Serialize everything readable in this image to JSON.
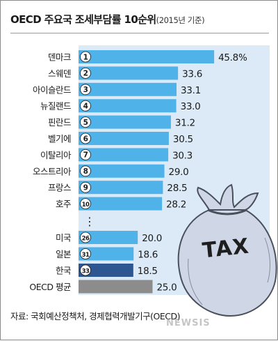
{
  "title": "OECD 주요국 조세부담률 10순위",
  "subtitle": "(2015년 기준)",
  "source": "자료: 국회예산정책처, 경제협력개발기구(OECD)",
  "watermark": "NEWSIS",
  "bag_label": "TAX",
  "ellipsis": "⋮",
  "colors": {
    "bar": "#4fb3ea",
    "bar_korea": "#2e5791",
    "bar_avg": "#8c8c8c",
    "panel": "#dbeaf6",
    "badge_fill": "#ffffff",
    "badge_text": "#1a1a1a",
    "bag": "#cfd7e6",
    "bag_outline": "#4a4f5c"
  },
  "chart_data": {
    "type": "bar",
    "orientation": "horizontal",
    "title": "OECD 주요국 조세부담률 10순위",
    "subtitle": "(2015년 기준)",
    "unit": "%",
    "categories": [
      "덴마크",
      "스웨덴",
      "아이슬란드",
      "뉴질랜드",
      "핀란드",
      "벨기에",
      "이탈리아",
      "오스트리아",
      "프랑스",
      "호주",
      "미국",
      "일본",
      "한국",
      "OECD 평균"
    ],
    "ranks": [
      "1",
      "2",
      "3",
      "4",
      "5",
      "6",
      "7",
      "8",
      "9",
      "10",
      "26",
      "31",
      "33",
      ""
    ],
    "values": [
      45.8,
      33.6,
      33.1,
      33.0,
      31.2,
      30.5,
      30.3,
      29.0,
      28.5,
      28.2,
      20.0,
      18.6,
      18.5,
      25.0
    ],
    "value_labels": [
      "45.8%",
      "33.6",
      "33.1",
      "33.0",
      "31.2",
      "30.5",
      "30.3",
      "29.0",
      "28.5",
      "28.2",
      "20.0",
      "18.6",
      "18.5",
      "25.0"
    ],
    "highlight": {
      "korea_index": 12,
      "average_index": 13
    },
    "grid": false,
    "legend": "none"
  }
}
